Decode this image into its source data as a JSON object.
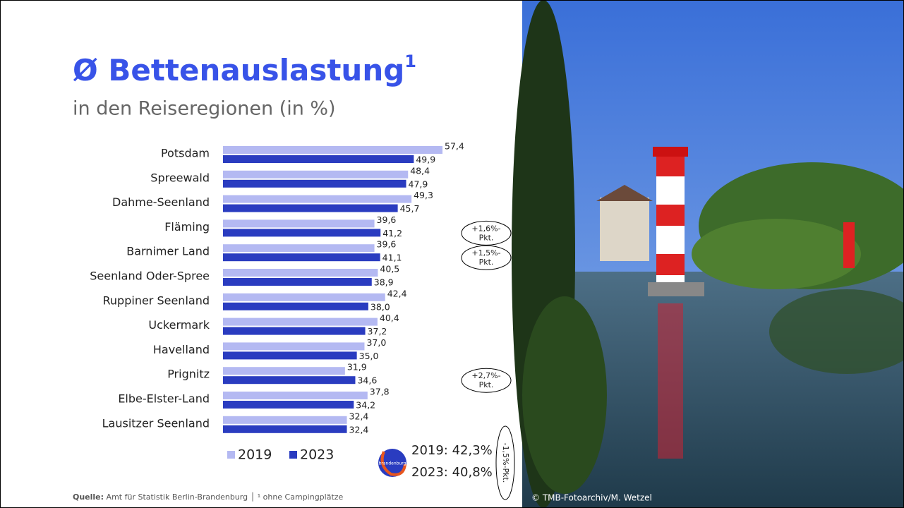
{
  "header": {
    "title": "Ø Bettenauslastung",
    "title_footnote": "1",
    "subtitle": "in den Reiseregionen (in %)"
  },
  "chart_data": {
    "type": "bar",
    "orientation": "horizontal",
    "categories": [
      "Potsdam",
      "Spreewald",
      "Dahme-Seenland",
      "Fläming",
      "Barnimer Land",
      "Seenland Oder-Spree",
      "Ruppiner Seenland",
      "Uckermark",
      "Havelland",
      "Prignitz",
      "Elbe-Elster-Land",
      "Lausitzer Seenland"
    ],
    "series": [
      {
        "name": "2019",
        "color": "#b4b9f2",
        "values": [
          57.4,
          48.4,
          49.3,
          39.6,
          39.6,
          40.5,
          42.4,
          40.4,
          37.0,
          31.9,
          37.8,
          32.4
        ],
        "value_labels": [
          "57,4",
          "48,4",
          "49,3",
          "39,6",
          "39,6",
          "40,5",
          "42,4",
          "40,4",
          "37,0",
          "31,9",
          "37,8",
          "32,4"
        ]
      },
      {
        "name": "2023",
        "color": "#2a3cc0",
        "values": [
          49.9,
          47.9,
          45.7,
          41.2,
          41.1,
          38.9,
          38.0,
          37.2,
          35.0,
          34.6,
          34.2,
          32.4
        ],
        "value_labels": [
          "49,9",
          "47,9",
          "45,7",
          "41,2",
          "41,1",
          "38,9",
          "38,0",
          "37,2",
          "35,0",
          "34,6",
          "34,2",
          "32,4"
        ]
      }
    ],
    "annotations": [
      {
        "category": "Fläming",
        "lines": [
          "+1,6%-",
          "Pkt."
        ]
      },
      {
        "category": "Barnimer Land",
        "lines": [
          "+1,5%-",
          "Pkt."
        ]
      },
      {
        "category": "Prignitz",
        "lines": [
          "+2,7%-",
          "Pkt."
        ]
      }
    ],
    "summary": {
      "lines": [
        "2019: 42,3%",
        "2023: 40,8%"
      ],
      "difference": "-1,5%-Pkt.",
      "logo": "brandenburg"
    }
  },
  "footer": {
    "source_label": "Quelle:",
    "source_text": " Amt für Statistik Berlin-Brandenburg │ ¹ ohne Campingplätze",
    "photo_credit": "© TMB-Fotoarchiv/M. Wetzel"
  }
}
